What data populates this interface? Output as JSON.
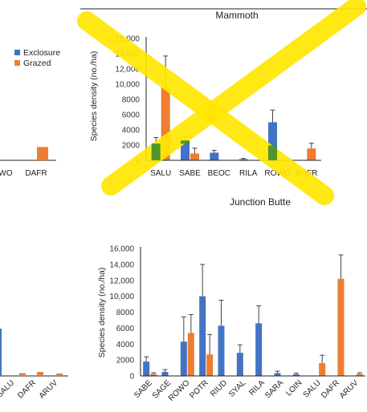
{
  "colors": {
    "exclosure": "#4472C4",
    "grazed": "#ED7D31",
    "axis": "#222222",
    "error_bar": "#444444",
    "strike": "#FFE600",
    "overlap_green": "#3E8E2E"
  },
  "left_fragments": {
    "legend": {
      "exclosure_label": "Exclosure",
      "grazed_label": "Grazed"
    },
    "top_partial_categories": [
      "WO",
      "DAFR"
    ],
    "top_partial_grazed_value": 1750,
    "bottom_partial_categories": [
      "SALU",
      "DAFR",
      "ARUV"
    ],
    "bottom_partial_grazed_values": [
      350,
      500,
      300
    ]
  },
  "chart_data": [
    {
      "type": "bar",
      "title": "Mammoth",
      "ylabel": "Species density (no./ha)",
      "ylim": [
        0,
        16000
      ],
      "yticks": [
        "0",
        "2000",
        "4000",
        "6000",
        "8000",
        "10,000",
        "12,000",
        "14,000",
        "16,000"
      ],
      "categories": [
        "SALU",
        "SABE",
        "BEOC",
        "RILA",
        "ROWO",
        "DAFR"
      ],
      "series": [
        {
          "name": "Exclosure",
          "values": [
            2200,
            2600,
            1000,
            150,
            5000,
            0
          ],
          "errors": [
            800,
            600,
            300,
            100,
            1600,
            0
          ]
        },
        {
          "name": "Grazed",
          "values": [
            9600,
            900,
            0,
            0,
            0,
            1550
          ],
          "errors": [
            4100,
            700,
            0,
            0,
            0,
            700
          ]
        }
      ],
      "crossed_out": true
    },
    {
      "type": "bar",
      "title": "Junction Butte",
      "ylabel": "Species density (no./ha)",
      "ylim": [
        0,
        16000
      ],
      "yticks": [
        "0",
        "2000",
        "4000",
        "6000",
        "8000",
        "10,000",
        "12,000",
        "14,000",
        "16,000"
      ],
      "categories": [
        "SABE",
        "SAGE",
        "ROWO",
        "POTR",
        "RIUD",
        "SYAL",
        "RILA",
        "SARA",
        "LOIN",
        "SALU",
        "DAFR",
        "ARUV"
      ],
      "series": [
        {
          "name": "Exclosure",
          "values": [
            1800,
            500,
            4300,
            10000,
            6300,
            2900,
            6600,
            350,
            200,
            0,
            0,
            0
          ],
          "errors": [
            600,
            300,
            3100,
            4000,
            3200,
            1000,
            2200,
            250,
            150,
            0,
            0,
            0
          ]
        },
        {
          "name": "Grazed",
          "values": [
            250,
            0,
            5400,
            2700,
            0,
            0,
            0,
            0,
            0,
            1600,
            12200,
            250
          ],
          "errors": [
            150,
            0,
            2300,
            2500,
            0,
            0,
            0,
            0,
            0,
            1000,
            3000,
            150
          ]
        }
      ]
    }
  ]
}
